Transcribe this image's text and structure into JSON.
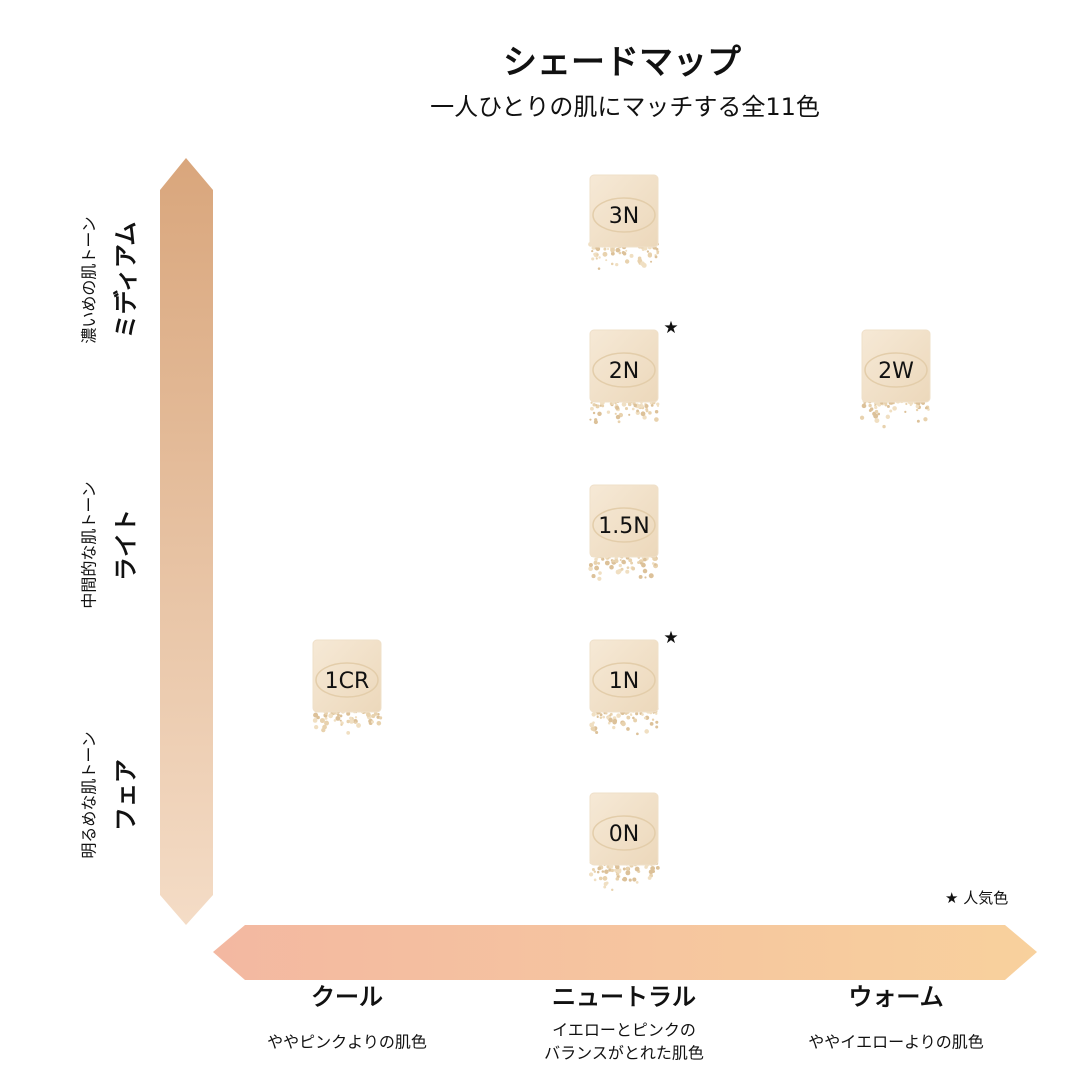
{
  "header": {
    "title": "シェードマップ",
    "subtitle": "一人ひとりの肌にマッチする全11色"
  },
  "depth_axis": [
    {
      "tone": "濃いめの肌トーン",
      "name": "ミディアム"
    },
    {
      "tone": "中間的な肌トーン",
      "name": "ライト"
    },
    {
      "tone": "明るめな肌トーン",
      "name": "フェア"
    }
  ],
  "undertone_axis": [
    {
      "name": "クール",
      "description": [
        "ややピンクよりの肌色"
      ]
    },
    {
      "name": "ニュートラル",
      "description": [
        "イエローとピンクの",
        "バランスがとれた肌色"
      ]
    },
    {
      "name": "ウォーム",
      "description": [
        "ややイエローよりの肌色"
      ]
    }
  ],
  "shades": [
    {
      "label": "3N",
      "popular": false
    },
    {
      "label": "2N",
      "popular": true
    },
    {
      "label": "2W",
      "popular": false
    },
    {
      "label": "1.5N",
      "popular": false
    },
    {
      "label": "1CR",
      "popular": false
    },
    {
      "label": "1N",
      "popular": true
    },
    {
      "label": "0N",
      "popular": false
    }
  ],
  "legend": {
    "mark": "★",
    "label": "人気色"
  }
}
